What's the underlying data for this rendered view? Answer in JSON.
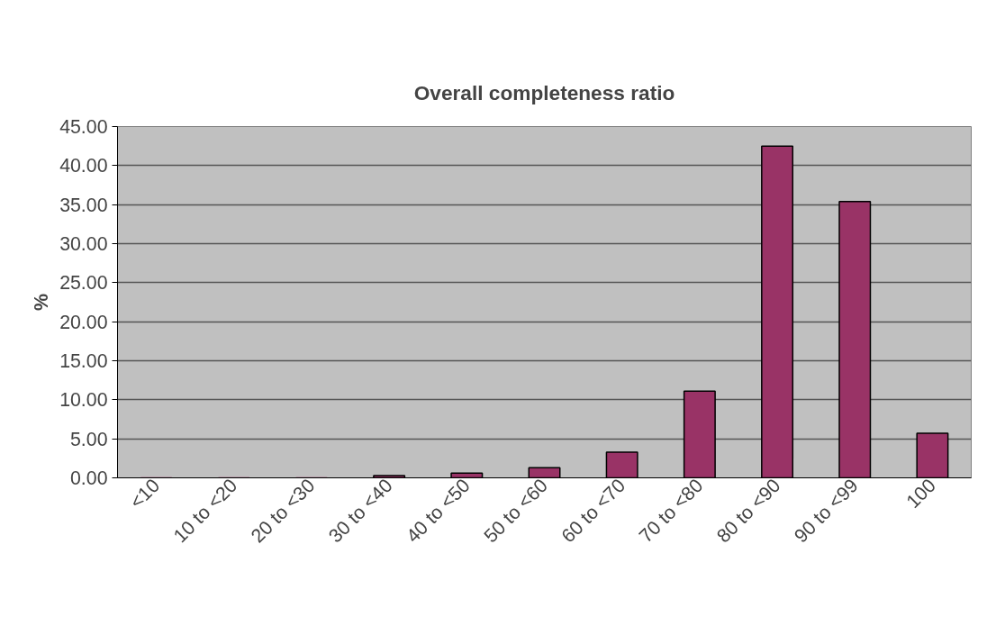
{
  "chart_data": {
    "type": "bar",
    "title": "Overall completeness ratio",
    "ylabel": "%",
    "categories": [
      "<10",
      "10 to <20",
      "20 to <30",
      "30 to <40",
      "40 to <50",
      "50 to <60",
      "60 to <70",
      "70 to <80",
      "80 to <90",
      "90 to <99",
      "100"
    ],
    "values": [
      0,
      0,
      0,
      0.3,
      0.6,
      1.3,
      3.3,
      11.1,
      42.5,
      35.4,
      5.7
    ],
    "color": "#993366",
    "ylim": [
      0,
      45
    ],
    "yticks": [
      {
        "value": 0,
        "label": "0.00"
      },
      {
        "value": 5,
        "label": "5.00"
      },
      {
        "value": 10,
        "label": "10.00"
      },
      {
        "value": 15,
        "label": "15.00"
      },
      {
        "value": 20,
        "label": "20.00"
      },
      {
        "value": 25,
        "label": "25.00"
      },
      {
        "value": 30,
        "label": "30.00"
      },
      {
        "value": 35,
        "label": "35.00"
      },
      {
        "value": 40,
        "label": "40.00"
      },
      {
        "value": 45,
        "label": "45.00"
      }
    ],
    "grid": "y"
  }
}
